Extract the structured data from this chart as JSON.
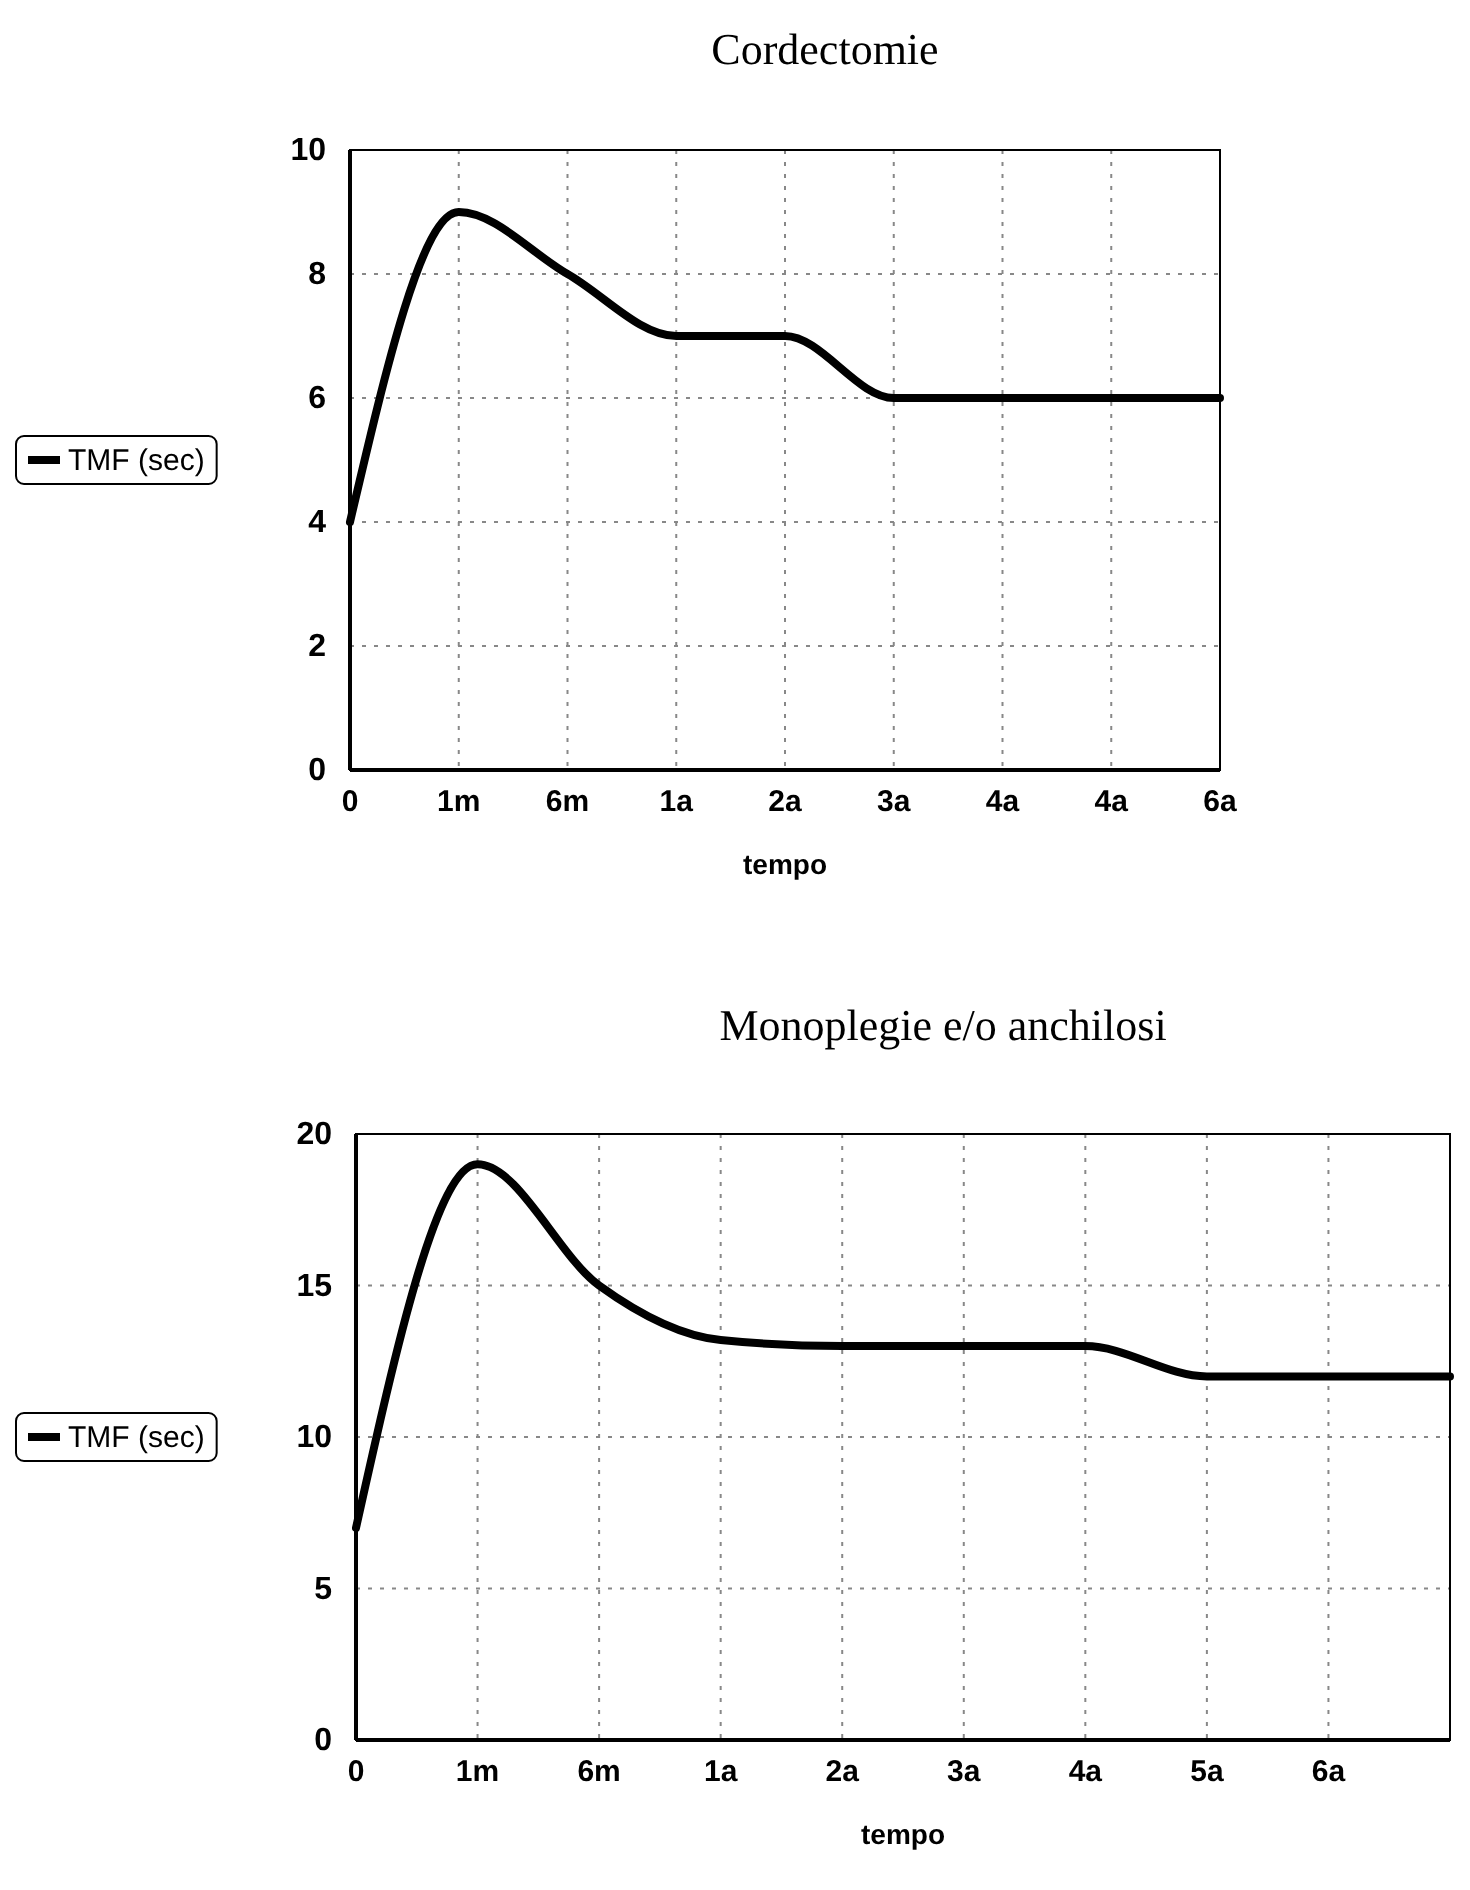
{
  "chart_data": [
    {
      "type": "line",
      "title": "Cordectomie",
      "xlabel": "tempo",
      "categories": [
        "0",
        "1m",
        "6m",
        "1a",
        "2a",
        "3a",
        "4a",
        "4a",
        "6a"
      ],
      "series": [
        {
          "name": "TMF (sec)",
          "color": "#000000",
          "values": [
            4,
            9,
            8,
            7,
            7,
            6,
            6,
            6,
            6
          ]
        }
      ],
      "ylim": [
        0,
        10
      ],
      "yticks": [
        0,
        2,
        4,
        6,
        8,
        10
      ],
      "grid": true,
      "legend": "left",
      "marker": "none",
      "line_style": "solid"
    },
    {
      "type": "line",
      "title": "Monoplegie e/o anchilosi",
      "xlabel": "tempo",
      "categories": [
        "0",
        "1m",
        "6m",
        "1a",
        "2a",
        "3a",
        "4a",
        "5a",
        "6a",
        null
      ],
      "series": [
        {
          "name": "TMF (sec)",
          "color": "#000000",
          "values": [
            7,
            19,
            15,
            13.2,
            13,
            13,
            13,
            12,
            12,
            12
          ]
        }
      ],
      "ylim": [
        0,
        20
      ],
      "yticks": [
        0,
        5,
        10,
        15,
        20
      ],
      "grid": true,
      "legend": "left",
      "marker": "none",
      "line_style": "solid"
    }
  ]
}
